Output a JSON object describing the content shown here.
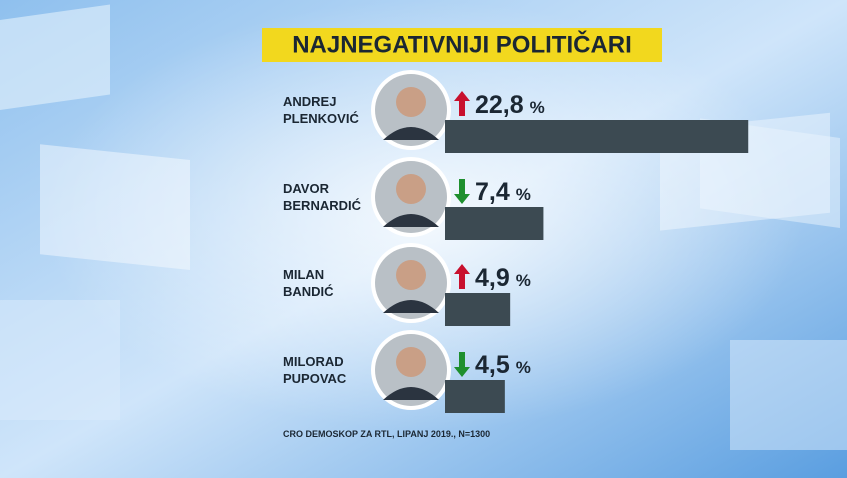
{
  "chart_data": {
    "type": "bar",
    "title": "NAJNEGATIVNIJI POLITIČARI",
    "categories": [
      "ANDREJ PLENKOVIĆ",
      "DAVOR BERNARDIĆ",
      "MILAN BANDIĆ",
      "MILORAD PUPOVAC"
    ],
    "values": [
      22.8,
      7.4,
      4.9,
      4.5
    ],
    "value_labels": [
      "22,8",
      "7,4",
      "4,9",
      "4,5"
    ],
    "unit": "%",
    "trend": [
      "up",
      "down",
      "up",
      "down"
    ],
    "color": "#3c4a52",
    "source": "CRO DEMOSKOP ZA RTL, LIPANJ 2019., N=1300"
  }
}
